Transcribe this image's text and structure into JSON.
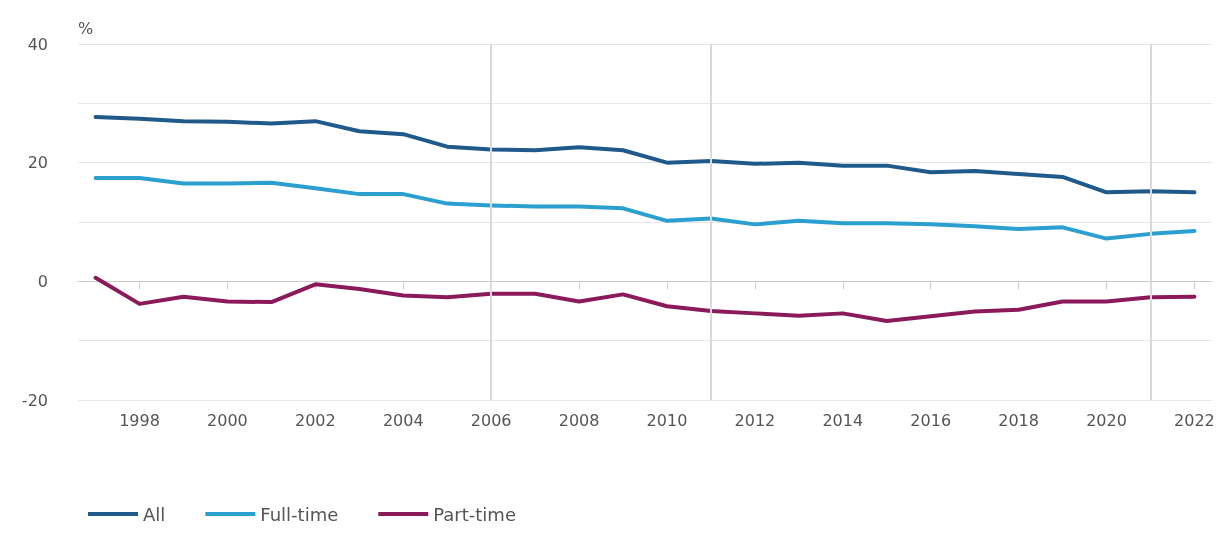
{
  "chart_data": {
    "type": "line",
    "ylabel": "%",
    "x": [
      1997,
      1998,
      1999,
      2000,
      2001,
      2002,
      2003,
      2004,
      2005,
      2006,
      2007,
      2008,
      2009,
      2010,
      2011,
      2012,
      2013,
      2014,
      2015,
      2016,
      2017,
      2018,
      2019,
      2020,
      2021,
      2022
    ],
    "series": [
      {
        "name": "All",
        "color": "#1f5a8a",
        "values": [
          27.7,
          27.4,
          27.0,
          26.9,
          26.6,
          27.0,
          25.3,
          24.8,
          22.7,
          22.2,
          22.1,
          22.6,
          22.1,
          20.0,
          20.3,
          19.8,
          20.0,
          19.5,
          19.5,
          18.4,
          18.6,
          18.1,
          17.6,
          15.0,
          15.2,
          15.0
        ]
      },
      {
        "name": "Full-time",
        "color": "#2a9fd0",
        "values": [
          17.4,
          17.4,
          16.5,
          16.5,
          16.6,
          15.7,
          14.7,
          14.7,
          13.1,
          12.8,
          12.6,
          12.6,
          12.3,
          10.2,
          10.6,
          9.6,
          10.2,
          9.8,
          9.8,
          9.6,
          9.3,
          8.8,
          9.1,
          7.2,
          8.0,
          8.5
        ]
      },
      {
        "name": "Part-time",
        "color": "#8b1a5a",
        "values": [
          0.6,
          -3.8,
          -2.6,
          -3.4,
          -3.5,
          -0.5,
          -1.3,
          -2.4,
          -2.7,
          -2.1,
          -2.1,
          -3.4,
          -2.2,
          -4.2,
          -5.0,
          -5.4,
          -5.8,
          -5.4,
          -6.7,
          -5.9,
          -5.1,
          -4.8,
          -3.4,
          -3.4,
          -2.7,
          -2.6
        ]
      }
    ],
    "xlim": [
      1996.6,
      2022.4
    ],
    "xticks": [
      1998,
      2000,
      2002,
      2004,
      2006,
      2008,
      2010,
      2012,
      2014,
      2016,
      2018,
      2020,
      2022
    ],
    "ylim": [
      -20,
      40
    ],
    "yticks": [
      -20,
      0,
      20,
      40
    ],
    "ref_lines": [
      {
        "axis": "x",
        "value": 2006,
        "color": "#d9d9de"
      },
      {
        "axis": "x",
        "value": 2011,
        "color": "#d9d9de"
      },
      {
        "axis": "x",
        "value": 2021,
        "color": "#d9d9de"
      }
    ],
    "grid": "y",
    "legend": "bottom left",
    "marker": "none",
    "line_style": "solid"
  }
}
